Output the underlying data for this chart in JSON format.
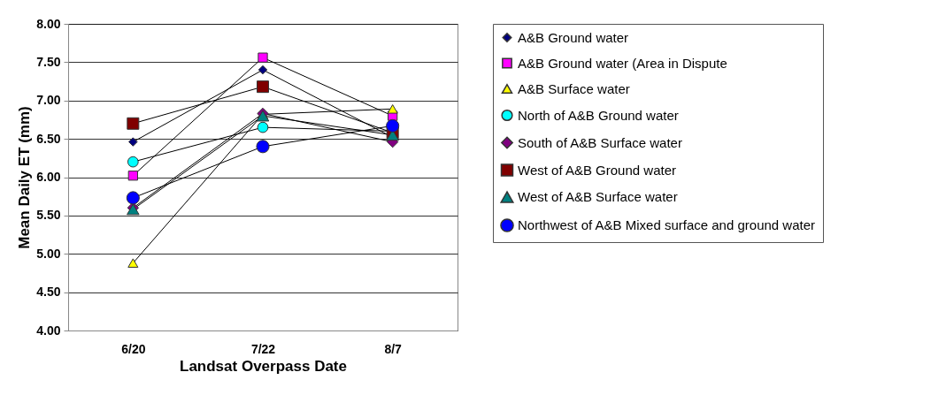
{
  "chart_data": {
    "type": "line",
    "xlabel": "Landsat Overpass Date",
    "ylabel": "Mean Daily ET (mm)",
    "categories": [
      "6/20",
      "7/22",
      "8/7"
    ],
    "ylim": [
      4,
      8
    ],
    "yticks": [
      {
        "value": 4,
        "label": "4.00"
      },
      {
        "value": 4.5,
        "label": "4.50"
      },
      {
        "value": 5,
        "label": "5.00"
      },
      {
        "value": 5.5,
        "label": "5.50"
      },
      {
        "value": 6,
        "label": "6.00"
      },
      {
        "value": 6.5,
        "label": "6.50"
      },
      {
        "value": 7,
        "label": "7.00"
      },
      {
        "value": 7.5,
        "label": "7.50"
      },
      {
        "value": 8,
        "label": "8.00"
      }
    ],
    "grid": "y",
    "legend": "right",
    "line_style": "solid",
    "series": [
      {
        "name": "A&B Ground water",
        "color": "#000080",
        "marker": "diamond",
        "values": [
          6.46,
          7.4,
          6.52
        ]
      },
      {
        "name": "A&B Ground water (Area in Dispute",
        "color": "#ff00ff",
        "marker": "square",
        "values": [
          6.02,
          7.56,
          6.8
        ]
      },
      {
        "name": "A&B Surface water",
        "color": "#ffff00",
        "marker": "triangle",
        "values": [
          4.88,
          6.82,
          6.89
        ]
      },
      {
        "name": "North of A&B Ground water",
        "color": "#00ffff",
        "marker": "circle",
        "values": [
          6.2,
          6.65,
          6.6
        ]
      },
      {
        "name": "South of A&B Surface water",
        "color": "#800080",
        "marker": "diamond",
        "values": [
          5.6,
          6.83,
          6.46
        ]
      },
      {
        "name": "West of A&B Ground water",
        "color": "#800000",
        "marker": "square",
        "values": [
          6.7,
          7.18,
          6.58
        ]
      },
      {
        "name": "West of A&B Surface water",
        "color": "#008080",
        "marker": "triangle",
        "values": [
          5.58,
          6.8,
          6.55
        ]
      },
      {
        "name": "Northwest of A&B Mixed surface and ground water",
        "color": "#0000ff",
        "marker": "circle",
        "values": [
          5.73,
          6.4,
          6.67
        ]
      }
    ]
  }
}
